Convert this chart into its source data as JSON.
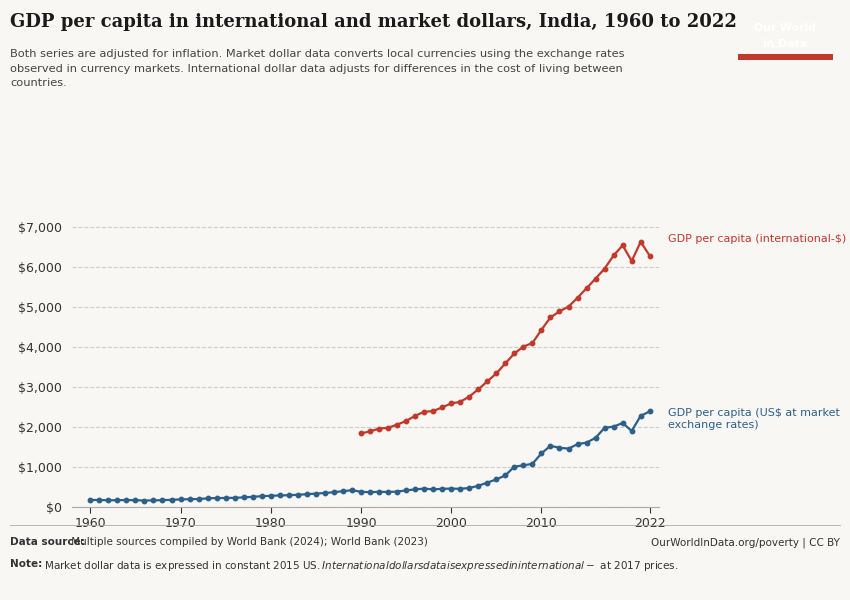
{
  "title": "GDP per capita in international and market dollars, India, 1960 to 2022",
  "subtitle": "Both series are adjusted for inflation. Market dollar data converts local currencies using the exchange rates\nobserved in currency markets. International dollar data adjusts for differences in the cost of living between\ncountries.",
  "datasource_bold": "Data source:",
  "datasource_normal": " Multiple sources compiled by World Bank (2024); World Bank (2023)",
  "datasource_right": "OurWorldInData.org/poverty | CC BY",
  "note_bold": "Note:",
  "note_normal": " Market dollar data is expressed in constant 2015 US$. International dollars data is expressed in international-$ at 2017 prices.",
  "logo_bg": "#1a3a5c",
  "logo_bar": "#c0392b",
  "bg_color": "#f9f7f4",
  "plot_bg": "#f9f7f4",
  "grid_color": "#cccccc",
  "line_intl_color": "#c0392b",
  "line_market_color": "#2c5f8a",
  "label_intl": "GDP per capita (international-$)",
  "label_market": "GDP per capita (US$ at market\nexchange rates)",
  "years_intl": [
    1990,
    1991,
    1992,
    1993,
    1994,
    1995,
    1996,
    1997,
    1998,
    1999,
    2000,
    2001,
    2002,
    2003,
    2004,
    2005,
    2006,
    2007,
    2008,
    2009,
    2010,
    2011,
    2012,
    2013,
    2014,
    2015,
    2016,
    2017,
    2018,
    2019,
    2020,
    2021,
    2022
  ],
  "values_intl": [
    1840,
    1890,
    1960,
    1980,
    2060,
    2150,
    2280,
    2380,
    2400,
    2490,
    2590,
    2630,
    2760,
    2940,
    3140,
    3340,
    3590,
    3840,
    4010,
    4100,
    4430,
    4740,
    4890,
    5010,
    5230,
    5470,
    5710,
    5960,
    6290,
    6540,
    6150,
    6630,
    6280
  ],
  "years_market": [
    1960,
    1961,
    1962,
    1963,
    1964,
    1965,
    1966,
    1967,
    1968,
    1969,
    1970,
    1971,
    1972,
    1973,
    1974,
    1975,
    1976,
    1977,
    1978,
    1979,
    1980,
    1981,
    1982,
    1983,
    1984,
    1985,
    1986,
    1987,
    1988,
    1989,
    1990,
    1991,
    1992,
    1993,
    1994,
    1995,
    1996,
    1997,
    1998,
    1999,
    2000,
    2001,
    2002,
    2003,
    2004,
    2005,
    2006,
    2007,
    2008,
    2009,
    2010,
    2011,
    2012,
    2013,
    2014,
    2015,
    2016,
    2017,
    2018,
    2019,
    2020,
    2021,
    2022
  ],
  "values_market": [
    175,
    175,
    168,
    170,
    174,
    170,
    162,
    165,
    172,
    179,
    190,
    195,
    200,
    215,
    225,
    225,
    230,
    240,
    255,
    270,
    280,
    290,
    295,
    305,
    320,
    335,
    350,
    370,
    395,
    420,
    380,
    370,
    380,
    375,
    385,
    415,
    440,
    460,
    440,
    455,
    460,
    455,
    475,
    530,
    610,
    690,
    790,
    1010,
    1040,
    1080,
    1340,
    1530,
    1480,
    1460,
    1570,
    1610,
    1730,
    1980,
    2010,
    2100,
    1900,
    2280,
    2390
  ],
  "xlim": [
    1958,
    2023
  ],
  "ylim": [
    0,
    7500
  ],
  "yticks": [
    0,
    1000,
    2000,
    3000,
    4000,
    5000,
    6000,
    7000
  ],
  "xticks": [
    1960,
    1970,
    1980,
    1990,
    2000,
    2010,
    2022
  ],
  "marker_size": 3.2,
  "linewidth": 1.6
}
